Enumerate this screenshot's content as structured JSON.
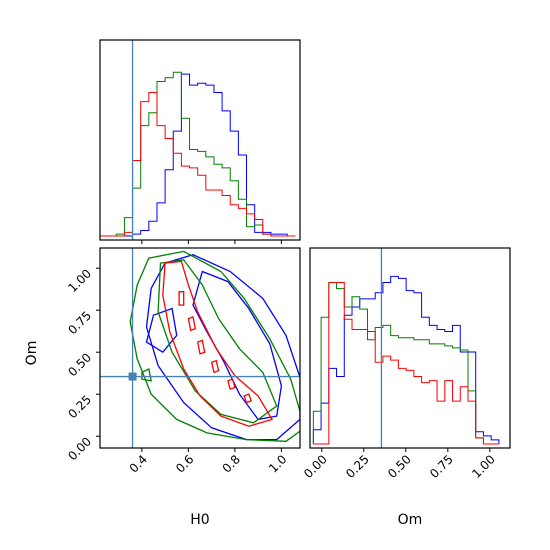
{
  "chart_data": {
    "type": "corner",
    "params": [
      {
        "label": "H0",
        "range": [
          0.22,
          1.08
        ],
        "ticks": [
          0.4,
          0.6,
          0.8,
          1.0
        ],
        "tick_labels": [
          "0.4",
          "0.6",
          "0.8",
          "1.0"
        ],
        "truth": 0.36
      },
      {
        "label": "Om",
        "range": [
          -0.07,
          1.12
        ],
        "ticks": [
          0.0,
          0.25,
          0.5,
          0.75,
          1.0
        ],
        "tick_labels": [
          "0.00",
          "0.25",
          "0.50",
          "0.75",
          "1.00"
        ],
        "truth": 0.355
      }
    ],
    "truth_color": "#4682b4",
    "series_colors": [
      "#0000ff",
      "#008000",
      "#ff0000"
    ],
    "hist_H0": {
      "x_start": 0.22,
      "bin_width": 0.035,
      "series": [
        {
          "color": "#0000ff",
          "values": [
            0,
            0,
            0,
            0,
            0.01,
            0.03,
            0.08,
            0.18,
            0.36,
            0.57,
            0.88,
            0.82,
            0.83,
            0.82,
            0.78,
            0.68,
            0.57,
            0.44,
            0.17,
            0.02,
            0.02,
            0.01,
            0.01,
            0.0
          ]
        },
        {
          "color": "#008000",
          "values": [
            0,
            0,
            0.01,
            0.1,
            0.26,
            0.6,
            0.67,
            0.84,
            0.86,
            0.89,
            0.64,
            0.47,
            0.46,
            0.43,
            0.39,
            0.37,
            0.3,
            0.2,
            0.05,
            0.06,
            0.01,
            0.0,
            0.0,
            0.0
          ]
        },
        {
          "color": "#ff0000",
          "values": [
            0,
            0,
            0,
            0.02,
            0.41,
            0.73,
            0.78,
            0.6,
            0.53,
            0.45,
            0.38,
            0.37,
            0.33,
            0.25,
            0.25,
            0.22,
            0.17,
            0.15,
            0.12,
            0.09,
            0.01,
            0.0,
            0.0,
            0.0
          ]
        }
      ]
    },
    "hist_Om": {
      "x_start": -0.05,
      "bin_width": 0.046,
      "series": [
        {
          "color": "#0000ff",
          "values": [
            0.07,
            0.2,
            0.37,
            0.33,
            0.63,
            0.67,
            0.71,
            0.71,
            0.74,
            0.79,
            0.82,
            0.81,
            0.75,
            0.74,
            0.62,
            0.58,
            0.56,
            0.55,
            0.58,
            0.45,
            0.45,
            0.06,
            0.04,
            0.02
          ]
        },
        {
          "color": "#008000",
          "values": [
            0.16,
            0.62,
            0.79,
            0.76,
            0.67,
            0.72,
            0.66,
            0.51,
            0.57,
            0.58,
            0.53,
            0.52,
            0.52,
            0.51,
            0.51,
            0.49,
            0.49,
            0.48,
            0.47,
            0.46,
            0.26,
            0.03,
            0.0,
            0.0
          ]
        },
        {
          "color": "#ff0000",
          "values": [
            0.0,
            0.0,
            0.79,
            0.79,
            0.61,
            0.56,
            0.56,
            0.55,
            0.4,
            0.43,
            0.41,
            0.37,
            0.36,
            0.33,
            0.3,
            0.31,
            0.21,
            0.31,
            0.21,
            0.28,
            0.21,
            0.03,
            0.0,
            0.0
          ]
        }
      ]
    },
    "contours": [
      {
        "color": "#0000ff",
        "levels": [
          [
            [
              0.5,
              1.03
            ],
            [
              0.62,
              1.08
            ],
            [
              0.78,
              0.98
            ],
            [
              0.92,
              0.82
            ],
            [
              1.02,
              0.6
            ],
            [
              1.08,
              0.35
            ],
            [
              1.08,
              0.1
            ],
            [
              0.98,
              -0.02
            ],
            [
              0.85,
              -0.02
            ],
            [
              0.7,
              0.05
            ],
            [
              0.58,
              0.2
            ],
            [
              0.47,
              0.42
            ],
            [
              0.42,
              0.65
            ],
            [
              0.44,
              0.88
            ],
            [
              0.5,
              1.03
            ]
          ],
          [
            [
              0.66,
              0.98
            ],
            [
              0.77,
              0.92
            ],
            [
              0.86,
              0.76
            ],
            [
              0.95,
              0.55
            ],
            [
              1.0,
              0.3
            ],
            [
              0.98,
              0.12
            ],
            [
              0.9,
              0.1
            ],
            [
              0.82,
              0.25
            ],
            [
              0.75,
              0.45
            ],
            [
              0.68,
              0.62
            ],
            [
              0.62,
              0.78
            ],
            [
              0.66,
              0.98
            ]
          ],
          [
            [
              0.45,
              0.72
            ],
            [
              0.53,
              0.76
            ],
            [
              0.55,
              0.6
            ],
            [
              0.49,
              0.5
            ],
            [
              0.42,
              0.56
            ],
            [
              0.45,
              0.72
            ]
          ]
        ]
      },
      {
        "color": "#008000",
        "levels": [
          [
            [
              0.43,
              1.06
            ],
            [
              0.58,
              1.1
            ],
            [
              0.74,
              0.98
            ],
            [
              0.84,
              0.82
            ],
            [
              0.95,
              0.58
            ],
            [
              1.04,
              0.34
            ],
            [
              1.1,
              0.05
            ],
            [
              1.02,
              -0.03
            ],
            [
              0.85,
              -0.02
            ],
            [
              0.68,
              0.02
            ],
            [
              0.55,
              0.1
            ],
            [
              0.44,
              0.25
            ],
            [
              0.38,
              0.46
            ],
            [
              0.35,
              0.68
            ],
            [
              0.38,
              0.9
            ],
            [
              0.43,
              1.06
            ]
          ],
          [
            [
              0.48,
              1.03
            ],
            [
              0.58,
              1.05
            ],
            [
              0.66,
              0.9
            ],
            [
              0.73,
              0.7
            ],
            [
              0.82,
              0.52
            ],
            [
              0.92,
              0.38
            ],
            [
              0.98,
              0.18
            ],
            [
              0.88,
              0.08
            ],
            [
              0.74,
              0.13
            ],
            [
              0.63,
              0.27
            ],
            [
              0.53,
              0.5
            ],
            [
              0.47,
              0.74
            ],
            [
              0.48,
              1.03
            ]
          ],
          [
            [
              0.4,
              0.38
            ],
            [
              0.43,
              0.4
            ],
            [
              0.44,
              0.33
            ],
            [
              0.4,
              0.34
            ],
            [
              0.4,
              0.38
            ]
          ]
        ]
      },
      {
        "color": "#ff0000",
        "levels": [
          [
            [
              0.5,
              1.03
            ],
            [
              0.57,
              1.04
            ],
            [
              0.6,
              0.9
            ],
            [
              0.64,
              0.74
            ],
            [
              0.72,
              0.52
            ],
            [
              0.8,
              0.36
            ],
            [
              0.9,
              0.24
            ],
            [
              0.96,
              0.1
            ],
            [
              0.86,
              0.06
            ],
            [
              0.74,
              0.12
            ],
            [
              0.65,
              0.24
            ],
            [
              0.58,
              0.4
            ],
            [
              0.52,
              0.62
            ],
            [
              0.49,
              0.84
            ],
            [
              0.5,
              1.03
            ]
          ],
          [
            [
              0.56,
              0.86
            ],
            [
              0.58,
              0.86
            ],
            [
              0.58,
              0.78
            ],
            [
              0.56,
              0.78
            ],
            [
              0.56,
              0.86
            ]
          ],
          [
            [
              0.6,
              0.7
            ],
            [
              0.62,
              0.71
            ],
            [
              0.63,
              0.64
            ],
            [
              0.61,
              0.63
            ],
            [
              0.6,
              0.7
            ]
          ],
          [
            [
              0.64,
              0.56
            ],
            [
              0.66,
              0.57
            ],
            [
              0.67,
              0.5
            ],
            [
              0.65,
              0.49
            ],
            [
              0.64,
              0.56
            ]
          ],
          [
            [
              0.7,
              0.44
            ],
            [
              0.72,
              0.45
            ],
            [
              0.73,
              0.39
            ],
            [
              0.71,
              0.38
            ],
            [
              0.7,
              0.44
            ]
          ],
          [
            [
              0.77,
              0.33
            ],
            [
              0.79,
              0.34
            ],
            [
              0.8,
              0.29
            ],
            [
              0.78,
              0.28
            ],
            [
              0.77,
              0.33
            ]
          ],
          [
            [
              0.84,
              0.24
            ],
            [
              0.86,
              0.25
            ],
            [
              0.87,
              0.21
            ],
            [
              0.85,
              0.2
            ],
            [
              0.84,
              0.24
            ]
          ]
        ]
      }
    ]
  }
}
